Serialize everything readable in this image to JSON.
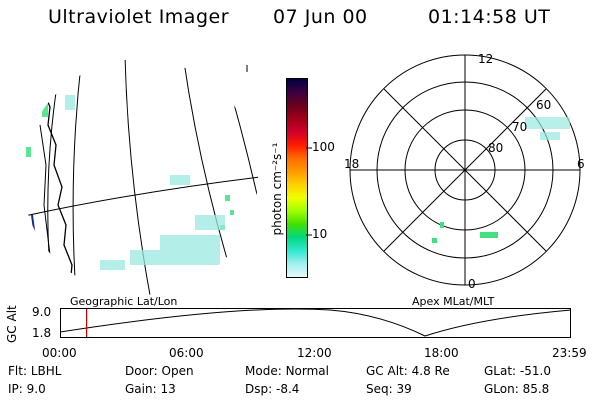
{
  "header": {
    "instrument": "Ultraviolet Imager",
    "date": "07 Jun 00",
    "time": "01:14:58 UT"
  },
  "colorbar": {
    "unit_label": "photon cm⁻²s⁻¹",
    "ticks": [
      "100",
      "10"
    ],
    "colors": [
      "#000040",
      "#3a0040",
      "#6a0020",
      "#a0001a",
      "#d0002a",
      "#ff1a00",
      "#ff6a00",
      "#ff9a00",
      "#ffd000",
      "#f0ff00",
      "#a0ff00",
      "#40e000",
      "#00d880",
      "#30e8d0",
      "#a0f0f0",
      "#e8f8f8"
    ]
  },
  "left_map": {
    "label": "Geographic Lat/Lon"
  },
  "polar": {
    "label": "Apex MLat/MLT",
    "mlt_labels": {
      "top": "12",
      "left": "18",
      "right": "6",
      "bottom": "0"
    },
    "lat_labels": [
      "60",
      "70",
      "80"
    ]
  },
  "timeline": {
    "ylabel": "GC Alt",
    "yticks": [
      "9.0",
      "1.8"
    ],
    "xticks": [
      "00:00",
      "06:00",
      "12:00",
      "18:00",
      "23:59"
    ],
    "current_fraction": 0.052
  },
  "info": {
    "flt_label": "Flt:",
    "flt_value": "LBHL",
    "ip_label": "IP:",
    "ip_value": "9.0",
    "door_label": "Door:",
    "door_value": "Open",
    "gain_label": "Gain:",
    "gain_value": "13",
    "mode_label": "Mode:",
    "mode_value": "Normal",
    "dsp_label": "Dsp:",
    "dsp_value": "-8.4",
    "gcalt_label": "GC Alt:",
    "gcalt_value": "4.8 Re",
    "seq_label": "Seq:",
    "seq_value": "39",
    "glat_label": "GLat:",
    "glat_value": "-51.0",
    "glon_label": "GLon:",
    "glon_value": "85.8"
  }
}
